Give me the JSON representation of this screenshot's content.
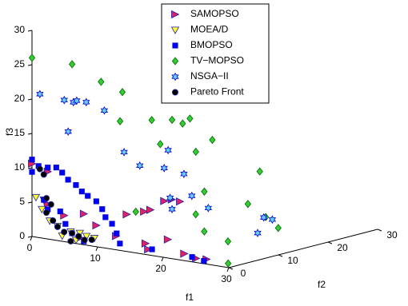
{
  "chart_data": {
    "type": "scatter3d",
    "xlabel": "f1",
    "ylabel": "f2",
    "zlabel": "f3",
    "xlim": [
      0,
      30
    ],
    "ylim": [
      0,
      30
    ],
    "zlim": [
      0,
      30
    ],
    "xticks": [
      0,
      10,
      20,
      30
    ],
    "yticks": [
      0,
      10,
      20,
      30
    ],
    "zticks": [
      0,
      5,
      10,
      15,
      20,
      25,
      30
    ],
    "legend": "top-center",
    "series": [
      {
        "name": "SAMOPSO",
        "marker": "triangle-right",
        "color": "#e0206a",
        "edge": "#2020a0",
        "x": [
          0,
          2.4,
          4.9,
          7.9,
          9.8,
          12.8,
          7.3,
          2.4,
          17.3,
          20.7,
          17.7,
          23.2,
          25,
          26.6,
          14.1,
          15,
          14.5,
          11.4,
          13.3,
          13.5
        ],
        "y": [
          0,
          0,
          0,
          0,
          0,
          0,
          0,
          0,
          0,
          0,
          0,
          0,
          0,
          0,
          8,
          10,
          9,
          4,
          5,
          6
        ],
        "z": [
          10.6,
          9.8,
          3.8,
          4.5,
          3.1,
          2,
          0.9,
          5.1,
          1.6,
          2.7,
          0.8,
          1,
          0.6,
          0.7,
          5.8,
          5.5,
          5.9,
          4.2,
          4.7,
          4.8
        ]
      },
      {
        "name": "MOEA/D",
        "marker": "triangle-down",
        "color": "#ffff33",
        "edge": "#2020a0",
        "x": [
          0.6,
          1.8,
          1.5,
          2.7,
          3.9,
          5.9,
          7.3,
          6.7,
          8.3,
          9.5,
          4.6
        ],
        "y": [
          0,
          0,
          0,
          0,
          0,
          0,
          0,
          0,
          0,
          0,
          0
        ],
        "z": [
          5.8,
          5.6,
          4.2,
          2.7,
          2.1,
          1.6,
          1.6,
          0.5,
          1.3,
          1.2,
          0.8
        ]
      },
      {
        "name": "BMOPSO",
        "marker": "square",
        "color": "#0000ff",
        "edge": "#0000cc",
        "x": [
          0,
          0,
          1,
          2.4,
          3.7,
          4.6,
          5.5,
          6.7,
          7.6,
          8.5,
          9.8,
          10.7,
          11.2,
          12.2,
          12.9,
          13.4,
          2.4,
          4.3,
          5.1,
          6.1,
          7.9,
          1.8,
          24.4,
          26.2,
          18.3
        ],
        "y": [
          0,
          0,
          0,
          0,
          0,
          0,
          0,
          0,
          0,
          0,
          0,
          0,
          0,
          0,
          0,
          0,
          0,
          0,
          0,
          0,
          0,
          0,
          0,
          0,
          0
        ],
        "z": [
          11.2,
          9.4,
          10.4,
          10.4,
          10.6,
          10,
          9.1,
          8.5,
          7.7,
          7.2,
          6.6,
          5.6,
          4.5,
          3.7,
          2.4,
          1,
          4.3,
          4.3,
          2.6,
          1.4,
          0.5,
          5.6,
          0.7,
          0.4,
          0.9
        ]
      },
      {
        "name": "TV−MOPSO",
        "marker": "diamond",
        "color": "#33cc33",
        "edge": "#006600",
        "x": [
          0,
          4.6,
          7.5,
          10,
          12.2,
          10.4,
          15.4,
          15,
          13.5,
          15.9,
          16.9,
          19.6,
          19.3,
          20.5,
          20.9,
          18.7,
          20.8,
          29.9,
          17.4,
          12.8,
          18.7,
          15.3
        ],
        "y": [
          0,
          2,
          4,
          5,
          8,
          4,
          10,
          12,
          8,
          12,
          14,
          20,
          18,
          20,
          22,
          10,
          12,
          0,
          10,
          4,
          10,
          8
        ],
        "z": [
          26,
          25.4,
          22.9,
          21.6,
          17.3,
          17.6,
          16.9,
          17.2,
          14,
          12.5,
          14,
          8.7,
          4.3,
          2.2,
          0.3,
          1.7,
          0.2,
          0.6,
          4,
          4.8,
          7.5,
          17.8
        ]
      },
      {
        "name": "NSGA−II",
        "marker": "hexagram",
        "color": "#66ccff",
        "edge": "#0000cc",
        "x": [
          1.2,
          3.4,
          4.8,
          5.3,
          6,
          8,
          4,
          9.5,
          11.9,
          14.7,
          14.1,
          15.6,
          16.8,
          15,
          17.8,
          20.2,
          20,
          22.3,
          15.3
        ],
        "y": [
          0,
          2,
          2,
          2,
          3,
          4,
          2,
          6,
          6,
          8,
          8,
          10,
          10,
          8,
          12,
          20,
          22,
          16,
          8
        ],
        "z": [
          20.9,
          20,
          19.9,
          20.2,
          19.9,
          18.8,
          15.5,
          12.6,
          11,
          13.3,
          10.6,
          9.6,
          6.6,
          6.4,
          4.6,
          2.1,
          1.4,
          0.9,
          4.8
        ]
      },
      {
        "name": "Pareto Front",
        "marker": "circle",
        "color": "#000000",
        "edge": "#2020a0",
        "x": [
          1.2,
          1.8,
          2.2,
          2.9,
          2.2,
          3.2,
          3.9,
          4.9,
          6.1,
          7.1,
          8,
          9.1,
          5.9
        ],
        "y": [
          0,
          0,
          0,
          0,
          0,
          0,
          0,
          0,
          0,
          0,
          0,
          0,
          0
        ],
        "z": [
          10,
          9.3,
          5.9,
          5.1,
          3.8,
          2.8,
          2,
          1.4,
          1.4,
          1.1,
          0.7,
          0.9,
          0.2
        ]
      }
    ]
  }
}
